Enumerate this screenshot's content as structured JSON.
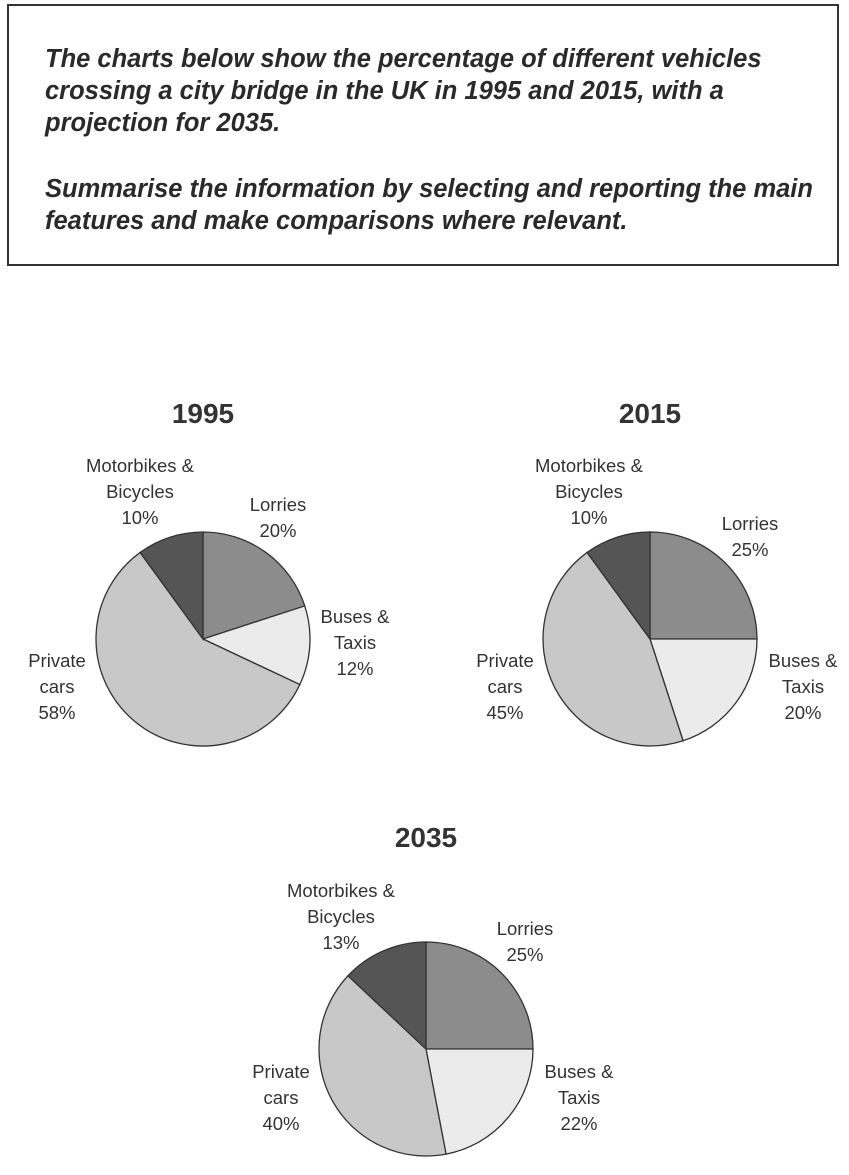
{
  "task": {
    "paragraph1": "The charts below show the percentage of different vehicles crossing a city bridge in the UK in 1995 and 2015, with a projection for 2035.",
    "paragraph2": "Summarise the information by selecting and reporting the main features and make comparisons where relevant."
  },
  "chart_data": [
    {
      "type": "pie",
      "title": "1995",
      "slices": [
        {
          "label": [
            "Lorries",
            "20%"
          ],
          "value": 20,
          "color": "#8c8c8c"
        },
        {
          "label": [
            "Buses &",
            "Taxis",
            "12%"
          ],
          "value": 12,
          "color": "#ebebeb"
        },
        {
          "label": [
            "Private",
            "cars",
            "58%"
          ],
          "value": 58,
          "color": "#c8c8c8"
        },
        {
          "label": [
            "Motorbikes &",
            "Bicycles",
            "10%"
          ],
          "value": 10,
          "color": "#555555"
        }
      ]
    },
    {
      "type": "pie",
      "title": "2015",
      "slices": [
        {
          "label": [
            "Lorries",
            "25%"
          ],
          "value": 25,
          "color": "#8c8c8c"
        },
        {
          "label": [
            "Buses &",
            "Taxis",
            "20%"
          ],
          "value": 20,
          "color": "#ebebeb"
        },
        {
          "label": [
            "Private",
            "cars",
            "45%"
          ],
          "value": 45,
          "color": "#c8c8c8"
        },
        {
          "label": [
            "Motorbikes &",
            "Bicycles",
            "10%"
          ],
          "value": 10,
          "color": "#555555"
        }
      ]
    },
    {
      "type": "pie",
      "title": "2035",
      "slices": [
        {
          "label": [
            "Lorries",
            "25%"
          ],
          "value": 25,
          "color": "#8c8c8c"
        },
        {
          "label": [
            "Buses &",
            "Taxis",
            "22%"
          ],
          "value": 22,
          "color": "#ebebeb"
        },
        {
          "label": [
            "Private",
            "cars",
            "40%"
          ],
          "value": 40,
          "color": "#c8c8c8"
        },
        {
          "label": [
            "Motorbikes &",
            "Bicycles",
            "13%"
          ],
          "value": 13,
          "color": "#555555"
        }
      ]
    }
  ]
}
